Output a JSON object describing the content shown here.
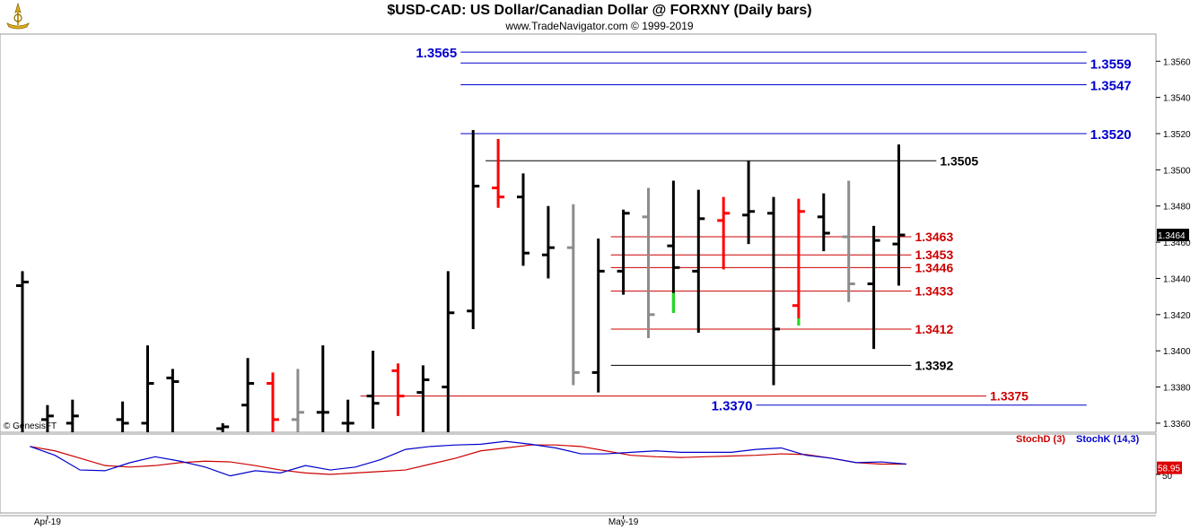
{
  "header": {
    "title": "$USD-CAD:  US Dollar/Canadian Dollar @ FORXNY  (Daily bars)",
    "subtitle": "www.TradeNavigator.com © 1999-2019",
    "watermark": "© GenesisFT"
  },
  "colors": {
    "bar_up": "#000000",
    "bar_down": "#ff0000",
    "bar_gray": "#8c8c8c",
    "level_blue": "#0000cc",
    "level_red": "#cc0000",
    "level_black": "#000000",
    "stoch_d": "#cc0000",
    "stoch_k": "#0000cc"
  },
  "chart_data": [
    {
      "type": "ohlc",
      "title": "$USD-CAD:  US Dollar/Canadian Dollar @ FORXNY  (Daily bars)",
      "ylim": [
        1.3355,
        1.3575
      ],
      "y_ticks": [
        "1.3360",
        "1.3380",
        "1.3400",
        "1.3420",
        "1.3440",
        "1.3460",
        "1.3480",
        "1.3500",
        "1.3520",
        "1.3540",
        "1.3560"
      ],
      "x_labels": [
        {
          "label": "Apr-19",
          "index": 1
        },
        {
          "label": "May-19",
          "index": 24
        }
      ],
      "last_price": "1.3464",
      "bars": [
        {
          "i": 0,
          "h": 1.3444,
          "l": 1.3355,
          "o": 1.3436,
          "c": 1.3438,
          "color": "black"
        },
        {
          "i": 1,
          "h": 1.337,
          "l": 1.3355,
          "o": 1.3362,
          "c": 1.3364,
          "color": "black"
        },
        {
          "i": 2,
          "h": 1.3373,
          "l": 1.3355,
          "o": 1.336,
          "c": 1.3364,
          "color": "black"
        },
        {
          "i": 4,
          "h": 1.3372,
          "l": 1.3355,
          "o": 1.3362,
          "c": 1.336,
          "color": "black"
        },
        {
          "i": 5,
          "h": 1.3403,
          "l": 1.3355,
          "o": 1.336,
          "c": 1.3382,
          "color": "black"
        },
        {
          "i": 6,
          "h": 1.339,
          "l": 1.3355,
          "o": 1.3385,
          "c": 1.3383,
          "color": "black"
        },
        {
          "i": 8,
          "h": 1.336,
          "l": 1.3355,
          "o": 1.3357,
          "c": 1.3358,
          "color": "black"
        },
        {
          "i": 9,
          "h": 1.3396,
          "l": 1.3355,
          "o": 1.337,
          "c": 1.3382,
          "color": "black"
        },
        {
          "i": 10,
          "h": 1.3388,
          "l": 1.3355,
          "o": 1.3382,
          "c": 1.3362,
          "color": "red"
        },
        {
          "i": 11,
          "h": 1.339,
          "l": 1.3355,
          "o": 1.3362,
          "c": 1.3366,
          "color": "gray"
        },
        {
          "i": 12,
          "h": 1.3403,
          "l": 1.3355,
          "o": 1.3366,
          "c": 1.3366,
          "color": "black"
        },
        {
          "i": 13,
          "h": 1.3373,
          "l": 1.3355,
          "o": 1.336,
          "c": 1.336,
          "color": "black"
        },
        {
          "i": 14,
          "h": 1.34,
          "l": 1.3357,
          "o": 1.3375,
          "c": 1.3371,
          "color": "black"
        },
        {
          "i": 15,
          "h": 1.3393,
          "l": 1.3364,
          "o": 1.3389,
          "c": 1.3375,
          "color": "red"
        },
        {
          "i": 16,
          "h": 1.3392,
          "l": 1.3355,
          "o": 1.3377,
          "c": 1.3384,
          "color": "black"
        },
        {
          "i": 17,
          "h": 1.3444,
          "l": 1.3355,
          "o": 1.338,
          "c": 1.3421,
          "color": "black"
        },
        {
          "i": 18,
          "h": 1.3522,
          "l": 1.3412,
          "o": 1.3422,
          "c": 1.3491,
          "color": "black"
        },
        {
          "i": 19,
          "h": 1.3517,
          "l": 1.3479,
          "o": 1.349,
          "c": 1.3485,
          "color": "red"
        },
        {
          "i": 20,
          "h": 1.3498,
          "l": 1.3447,
          "o": 1.3485,
          "c": 1.3454,
          "color": "black"
        },
        {
          "i": 21,
          "h": 1.348,
          "l": 1.344,
          "o": 1.3453,
          "c": 1.3457,
          "color": "black"
        },
        {
          "i": 22,
          "h": 1.3481,
          "l": 1.3381,
          "o": 1.3457,
          "c": 1.3388,
          "color": "gray"
        },
        {
          "i": 23,
          "h": 1.3462,
          "l": 1.3377,
          "o": 1.3388,
          "c": 1.3444,
          "color": "black"
        },
        {
          "i": 24,
          "h": 1.3478,
          "l": 1.3431,
          "o": 1.3444,
          "c": 1.3476,
          "color": "black"
        },
        {
          "i": 25,
          "h": 1.349,
          "l": 1.3407,
          "o": 1.3474,
          "c": 1.342,
          "color": "gray"
        },
        {
          "i": 26,
          "h": 1.3494,
          "l": 1.3421,
          "o": 1.3458,
          "c": 1.3446,
          "color": "black",
          "green_tail": [
            1.3421,
            1.3432
          ]
        },
        {
          "i": 27,
          "h": 1.3489,
          "l": 1.341,
          "o": 1.3444,
          "c": 1.3473,
          "color": "black"
        },
        {
          "i": 28,
          "h": 1.3485,
          "l": 1.3445,
          "o": 1.3472,
          "c": 1.3476,
          "color": "red"
        },
        {
          "i": 29,
          "h": 1.3505,
          "l": 1.3459,
          "o": 1.3475,
          "c": 1.3477,
          "color": "black"
        },
        {
          "i": 30,
          "h": 1.3485,
          "l": 1.3381,
          "o": 1.3476,
          "c": 1.3412,
          "color": "black"
        },
        {
          "i": 31,
          "h": 1.3484,
          "l": 1.3414,
          "o": 1.3425,
          "c": 1.3477,
          "color": "red",
          "green_tail": [
            1.3414,
            1.3418
          ]
        },
        {
          "i": 32,
          "h": 1.3487,
          "l": 1.3455,
          "o": 1.3474,
          "c": 1.3465,
          "color": "black"
        },
        {
          "i": 33,
          "h": 1.3494,
          "l": 1.3427,
          "o": 1.3463,
          "c": 1.3437,
          "color": "gray"
        },
        {
          "i": 34,
          "h": 1.3469,
          "l": 1.3401,
          "o": 1.3437,
          "c": 1.3461,
          "color": "black"
        },
        {
          "i": 35,
          "h": 1.3514,
          "l": 1.3436,
          "o": 1.3459,
          "c": 1.3464,
          "color": "black"
        }
      ],
      "levels": [
        {
          "label": "1.3565",
          "value": 1.3565,
          "color": "blue",
          "x1": 17.5,
          "x2": 42.5,
          "label_at": "left"
        },
        {
          "label": "1.3559",
          "value": 1.3559,
          "color": "blue",
          "x1": 17.5,
          "x2": 42.5,
          "label_at": "right"
        },
        {
          "label": "1.3547",
          "value": 1.3547,
          "color": "blue",
          "x1": 17.5,
          "x2": 42.5,
          "label_at": "right"
        },
        {
          "label": "1.3520",
          "value": 1.352,
          "color": "blue",
          "x1": 17.5,
          "x2": 42.5,
          "label_at": "right"
        },
        {
          "label": "1.3505",
          "value": 1.3505,
          "color": "black",
          "x1": 18.5,
          "x2": 36.5,
          "label_at": "right"
        },
        {
          "label": "1.3463",
          "value": 1.3463,
          "color": "red",
          "x1": 23.5,
          "x2": 35.5,
          "label_at": "right"
        },
        {
          "label": "1.3453",
          "value": 1.3453,
          "color": "red",
          "x1": 23.5,
          "x2": 35.5,
          "label_at": "right"
        },
        {
          "label": "1.3446",
          "value": 1.3446,
          "color": "red",
          "x1": 23.5,
          "x2": 35.5,
          "label_at": "right"
        },
        {
          "label": "1.3433",
          "value": 1.3433,
          "color": "red",
          "x1": 23.5,
          "x2": 35.5,
          "label_at": "right"
        },
        {
          "label": "1.3412",
          "value": 1.3412,
          "color": "red",
          "x1": 23.5,
          "x2": 35.5,
          "label_at": "right"
        },
        {
          "label": "1.3392",
          "value": 1.3392,
          "color": "black",
          "x1": 23.5,
          "x2": 35.5,
          "label_at": "right"
        },
        {
          "label": "1.3375",
          "value": 1.3375,
          "color": "red",
          "x1": 13.5,
          "x2": 38.5,
          "label_at": "right"
        },
        {
          "label": "1.3370",
          "value": 1.337,
          "color": "blue",
          "x1": 29.3,
          "x2": 42.5,
          "label_at": "left"
        }
      ]
    },
    {
      "type": "line",
      "title": "",
      "legend": [
        "StochD (3)",
        "StochK (14,3)"
      ],
      "y_ticks": [
        "50"
      ],
      "last_value": "58.95",
      "ylim": [
        0,
        100
      ],
      "series": [
        {
          "name": "StochD (3)",
          "color": "red",
          "values": [
            88,
            82,
            72,
            62,
            60,
            62,
            66,
            68,
            67,
            62,
            56,
            52,
            50,
            52,
            54,
            56,
            64,
            72,
            82,
            86,
            90,
            90,
            88,
            82,
            76,
            74,
            73,
            74,
            75,
            76,
            78,
            77,
            72,
            66,
            64,
            64
          ]
        },
        {
          "name": "StochK (14,3)",
          "color": "blue",
          "values": [
            88,
            76,
            56,
            55,
            66,
            74,
            68,
            60,
            48,
            55,
            52,
            62,
            56,
            60,
            70,
            84,
            88,
            90,
            91,
            95,
            91,
            86,
            78,
            78,
            80,
            82,
            80,
            80,
            80,
            84,
            86,
            76,
            72,
            66,
            67,
            64
          ]
        }
      ]
    }
  ]
}
